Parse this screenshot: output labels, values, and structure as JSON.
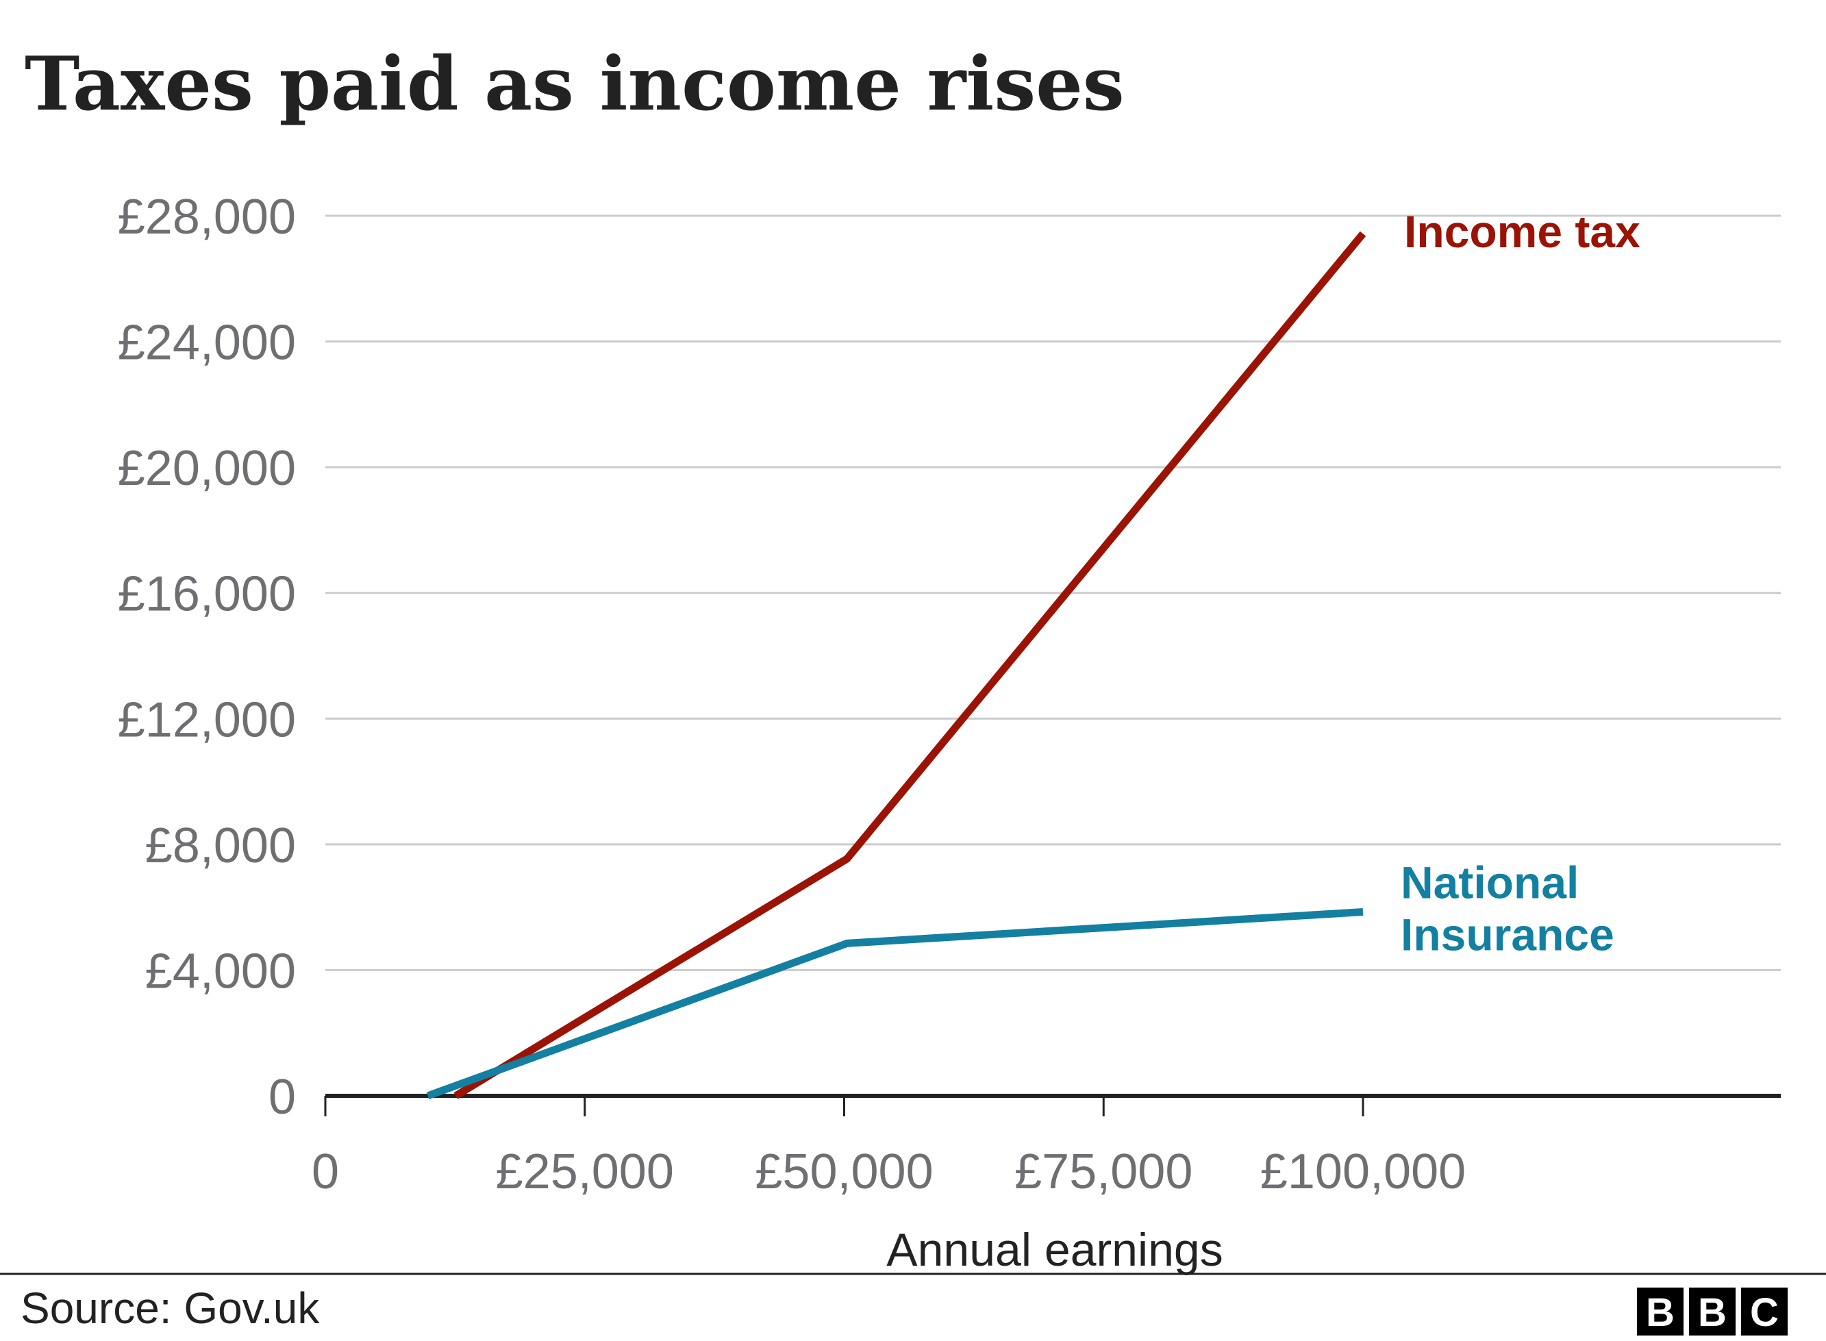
{
  "colors": {
    "background": "#ffffff",
    "gridline": "#cccccc",
    "axis": "#222222",
    "tick_text": "#6e6e73",
    "title_text": "#222222",
    "income_tax": "#9b1305",
    "national_insurance": "#1380a1"
  },
  "source": "Source: Gov.uk",
  "logo": {
    "letters": [
      "B",
      "B",
      "C"
    ],
    "alt": "BBC"
  },
  "chart_data": {
    "type": "line",
    "title": "Taxes paid as income rises",
    "xlabel": "Annual earnings",
    "ylabel": "",
    "xlim": [
      0,
      140000
    ],
    "ylim": [
      0,
      28000
    ],
    "xticks": [
      0,
      25000,
      50000,
      75000,
      100000
    ],
    "xtick_labels": [
      "0",
      "£25,000",
      "£50,000",
      "£75,000",
      "£100,000"
    ],
    "yticks": [
      0,
      4000,
      8000,
      12000,
      16000,
      20000,
      24000,
      28000
    ],
    "ytick_labels": [
      "0",
      "£4,000",
      "£8,000",
      "£12,000",
      "£16,000",
      "£20,000",
      "£24,000",
      "£28,000"
    ],
    "grid": true,
    "series": [
      {
        "name": "Income tax",
        "color": "#9b1305",
        "label_lines": [
          "Income tax"
        ],
        "x": [
          12570,
          50270,
          100000
        ],
        "y": [
          0,
          7540,
          27430
        ]
      },
      {
        "name": "National Insurance",
        "color": "#1380a1",
        "label_lines": [
          "National",
          "Insurance"
        ],
        "x": [
          9880,
          50270,
          100000
        ],
        "y": [
          0,
          4850,
          5850
        ]
      }
    ]
  }
}
